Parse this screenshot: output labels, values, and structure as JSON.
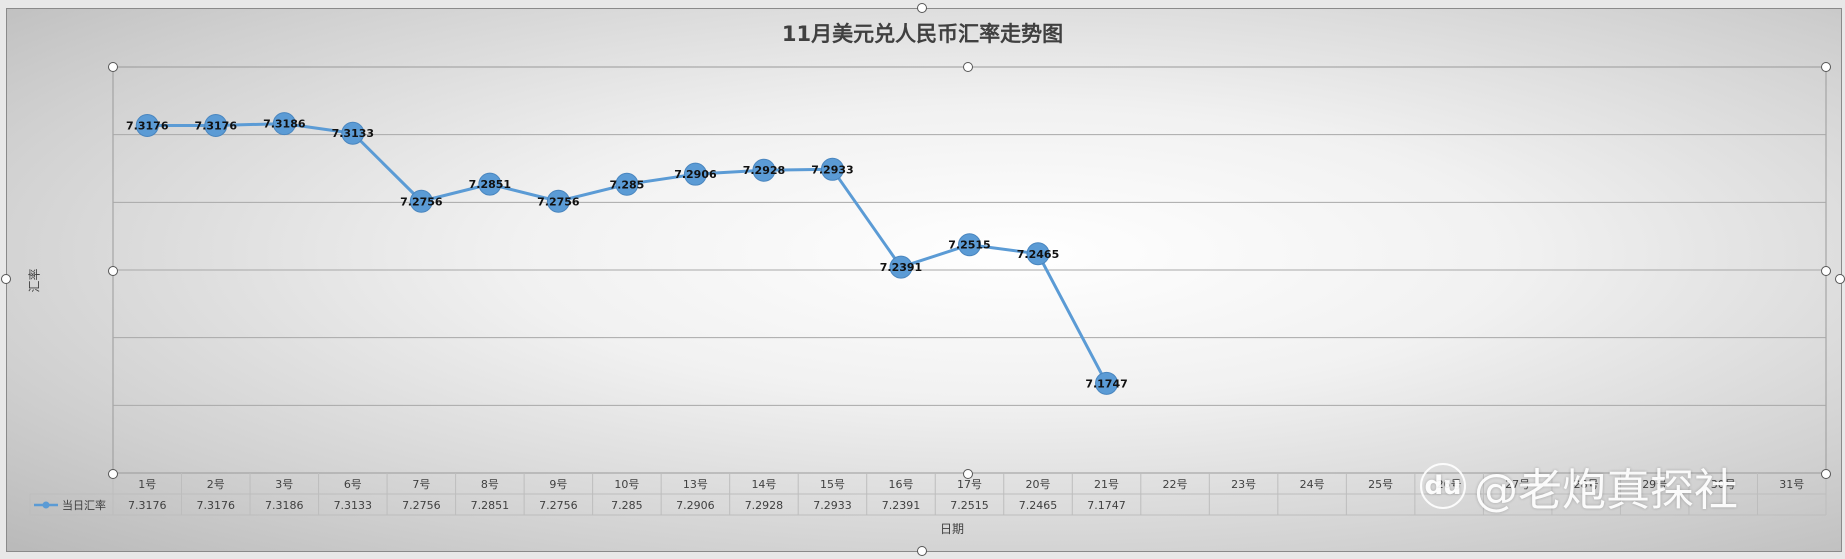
{
  "chart_data": {
    "type": "line",
    "title": "11月美元兑人民币汇率走势图",
    "xlabel": "日期",
    "ylabel": "汇率",
    "categories": [
      "1号",
      "2号",
      "3号",
      "6号",
      "7号",
      "8号",
      "9号",
      "10号",
      "13号",
      "14号",
      "15号",
      "16号",
      "17号",
      "20号",
      "21号",
      "22号",
      "23号",
      "24号",
      "25号",
      "26号",
      "27号",
      "28号",
      "29号",
      "30号",
      "31号"
    ],
    "series": [
      {
        "name": "当日汇率",
        "values": [
          7.3176,
          7.3176,
          7.3186,
          7.3133,
          7.2756,
          7.2851,
          7.2756,
          7.285,
          7.2906,
          7.2928,
          7.2933,
          7.2391,
          7.2515,
          7.2465,
          7.1747,
          null,
          null,
          null,
          null,
          null,
          null,
          null,
          null,
          null,
          null
        ],
        "labels": [
          "7.3176",
          "7.3176",
          "7.3186",
          "7.3133",
          "7.2756",
          "7.2851",
          "7.2756",
          "7.285",
          "7.2906",
          "7.2928",
          "7.2933",
          "7.2391",
          "7.2515",
          "7.2465",
          "7.1747",
          "",
          "",
          "",
          "",
          "",
          "",
          "",
          "",
          "",
          ""
        ]
      }
    ],
    "ylim": [
      7.125,
      7.35
    ],
    "grid": true,
    "legend": "data-table",
    "color": "#5b9bd5"
  },
  "watermark": {
    "logo": "du",
    "text": "@老炮真探社"
  }
}
